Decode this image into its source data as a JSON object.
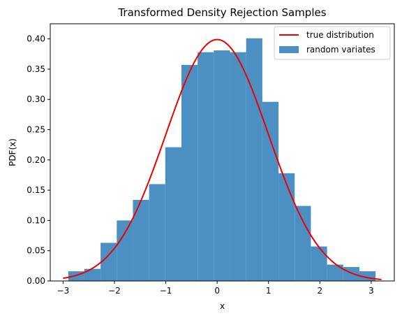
{
  "chart_data": {
    "type": "bar",
    "title": "Transformed Density Rejection Samples",
    "xlabel": "x",
    "ylabel": "PDF(x)",
    "xlim": [
      -3.25,
      3.45
    ],
    "ylim": [
      0.0,
      0.425
    ],
    "x_ticks": [
      -3,
      -2,
      -1,
      0,
      1,
      2,
      3
    ],
    "y_ticks": [
      0.0,
      0.05,
      0.1,
      0.15,
      0.2,
      0.25,
      0.3,
      0.35,
      0.4
    ],
    "grid": false,
    "legend_position": "top-right",
    "histogram": {
      "name": "random variates",
      "color": "#4c8fc3",
      "bins": [
        {
          "x0": -2.9,
          "x1": -2.585,
          "density": 0.016
        },
        {
          "x0": -2.585,
          "x1": -2.27,
          "density": 0.02
        },
        {
          "x0": -2.27,
          "x1": -1.955,
          "density": 0.063
        },
        {
          "x0": -1.955,
          "x1": -1.64,
          "density": 0.1
        },
        {
          "x0": -1.64,
          "x1": -1.325,
          "density": 0.134
        },
        {
          "x0": -1.325,
          "x1": -1.01,
          "density": 0.16
        },
        {
          "x0": -1.01,
          "x1": -0.695,
          "density": 0.221
        },
        {
          "x0": -0.695,
          "x1": -0.38,
          "density": 0.357
        },
        {
          "x0": -0.38,
          "x1": -0.065,
          "density": 0.378
        },
        {
          "x0": -0.065,
          "x1": 0.25,
          "density": 0.381
        },
        {
          "x0": 0.25,
          "x1": 0.565,
          "density": 0.378
        },
        {
          "x0": 0.565,
          "x1": 0.88,
          "density": 0.401
        },
        {
          "x0": 0.88,
          "x1": 1.195,
          "density": 0.296
        },
        {
          "x0": 1.195,
          "x1": 1.51,
          "density": 0.178
        },
        {
          "x0": 1.51,
          "x1": 1.825,
          "density": 0.124
        },
        {
          "x0": 1.825,
          "x1": 2.14,
          "density": 0.057
        },
        {
          "x0": 2.14,
          "x1": 2.455,
          "density": 0.027
        },
        {
          "x0": 2.455,
          "x1": 2.77,
          "density": 0.023
        },
        {
          "x0": 2.77,
          "x1": 3.085,
          "density": 0.016
        }
      ]
    },
    "curve": {
      "name": "true distribution",
      "color": "#ee0000",
      "function": "standard normal pdf",
      "x_range": [
        -3.0,
        3.2
      ]
    },
    "legend": [
      {
        "label": "true distribution",
        "kind": "line",
        "color": "#ee0000"
      },
      {
        "label": "random variates",
        "kind": "patch",
        "color": "#4c8fc3"
      }
    ]
  }
}
